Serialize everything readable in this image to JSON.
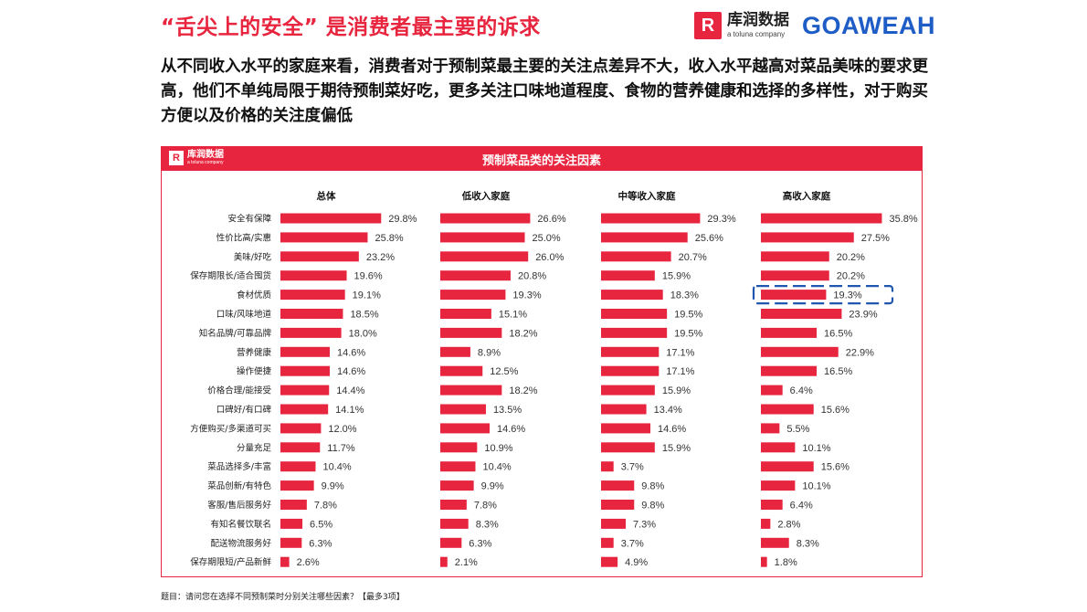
{
  "page": {
    "headline": "“舌尖上的安全” 是消费者最主要的诉求",
    "summary": "从不同收入水平的家庭来看，消费者对于预制菜最主要的关注点差异不大，收入水平越高对菜品美味的要求更高，他们不单纯局限于期待预制菜好吃，更多关注口味地道程度、食物的营养健康和选择的多样性，对于购买方便以及价格的关注度偏低",
    "logo_mark": "R",
    "logo_cn": "库润数据",
    "logo_en": "a toluna company",
    "partner_logo": "GOAWEAH",
    "footnote": "题目：请问您在选择不同预制菜时分别关注哪些因素？【最多3项】"
  },
  "panel": {
    "title": "预制菜品类的关注因素",
    "logo_mark": "R",
    "logo_cn": "库润数据",
    "logo_en": "a toluna company"
  },
  "colors": {
    "bar": "#e8253e",
    "accent": "#e8253e",
    "highlight_box": "#1e56b0",
    "partner_logo": "#1e5cc6"
  },
  "chart_data": {
    "type": "bar",
    "orientation": "horizontal",
    "unit": "%",
    "title": "预制菜品类的关注因素",
    "categories": [
      "安全有保障",
      "性价比高/实惠",
      "美味/好吃",
      "保存期限长/适合囤货",
      "食材优质",
      "口味/风味地道",
      "知名品牌/可靠品牌",
      "营养健康",
      "操作便捷",
      "价格合理/能接受",
      "口碑好/有口碑",
      "方便购买/多渠道可买",
      "分量充足",
      "菜品选择多/丰富",
      "菜品创新/有特色",
      "客服/售后服务好",
      "有知名餐饮联名",
      "配送物流服务好",
      "保存期限短/产品新鲜"
    ],
    "series": [
      {
        "name": "总体",
        "values": [
          29.8,
          25.8,
          23.2,
          19.6,
          19.1,
          18.5,
          18.0,
          14.6,
          14.6,
          14.4,
          14.1,
          12.0,
          11.7,
          10.4,
          9.9,
          7.8,
          6.5,
          6.3,
          2.6
        ]
      },
      {
        "name": "低收入家庭",
        "values": [
          26.6,
          25.0,
          26.0,
          20.8,
          19.3,
          15.1,
          18.2,
          8.9,
          12.5,
          18.2,
          13.5,
          14.6,
          10.9,
          10.4,
          9.9,
          7.8,
          8.3,
          6.3,
          2.1
        ]
      },
      {
        "name": "中等收入家庭",
        "values": [
          29.3,
          25.6,
          20.7,
          15.9,
          18.3,
          19.5,
          19.5,
          17.1,
          17.1,
          15.9,
          13.4,
          14.6,
          15.9,
          3.7,
          9.8,
          9.8,
          7.3,
          3.7,
          4.9
        ]
      },
      {
        "name": "高收入家庭",
        "values": [
          35.8,
          27.5,
          20.2,
          20.2,
          19.3,
          23.9,
          16.5,
          22.9,
          16.5,
          6.4,
          15.6,
          5.5,
          10.1,
          15.6,
          10.1,
          6.4,
          2.8,
          8.3,
          1.8
        ]
      }
    ],
    "highlight": {
      "series": "高收入家庭",
      "category": "食材优质"
    },
    "legend": "none",
    "grid": false
  }
}
